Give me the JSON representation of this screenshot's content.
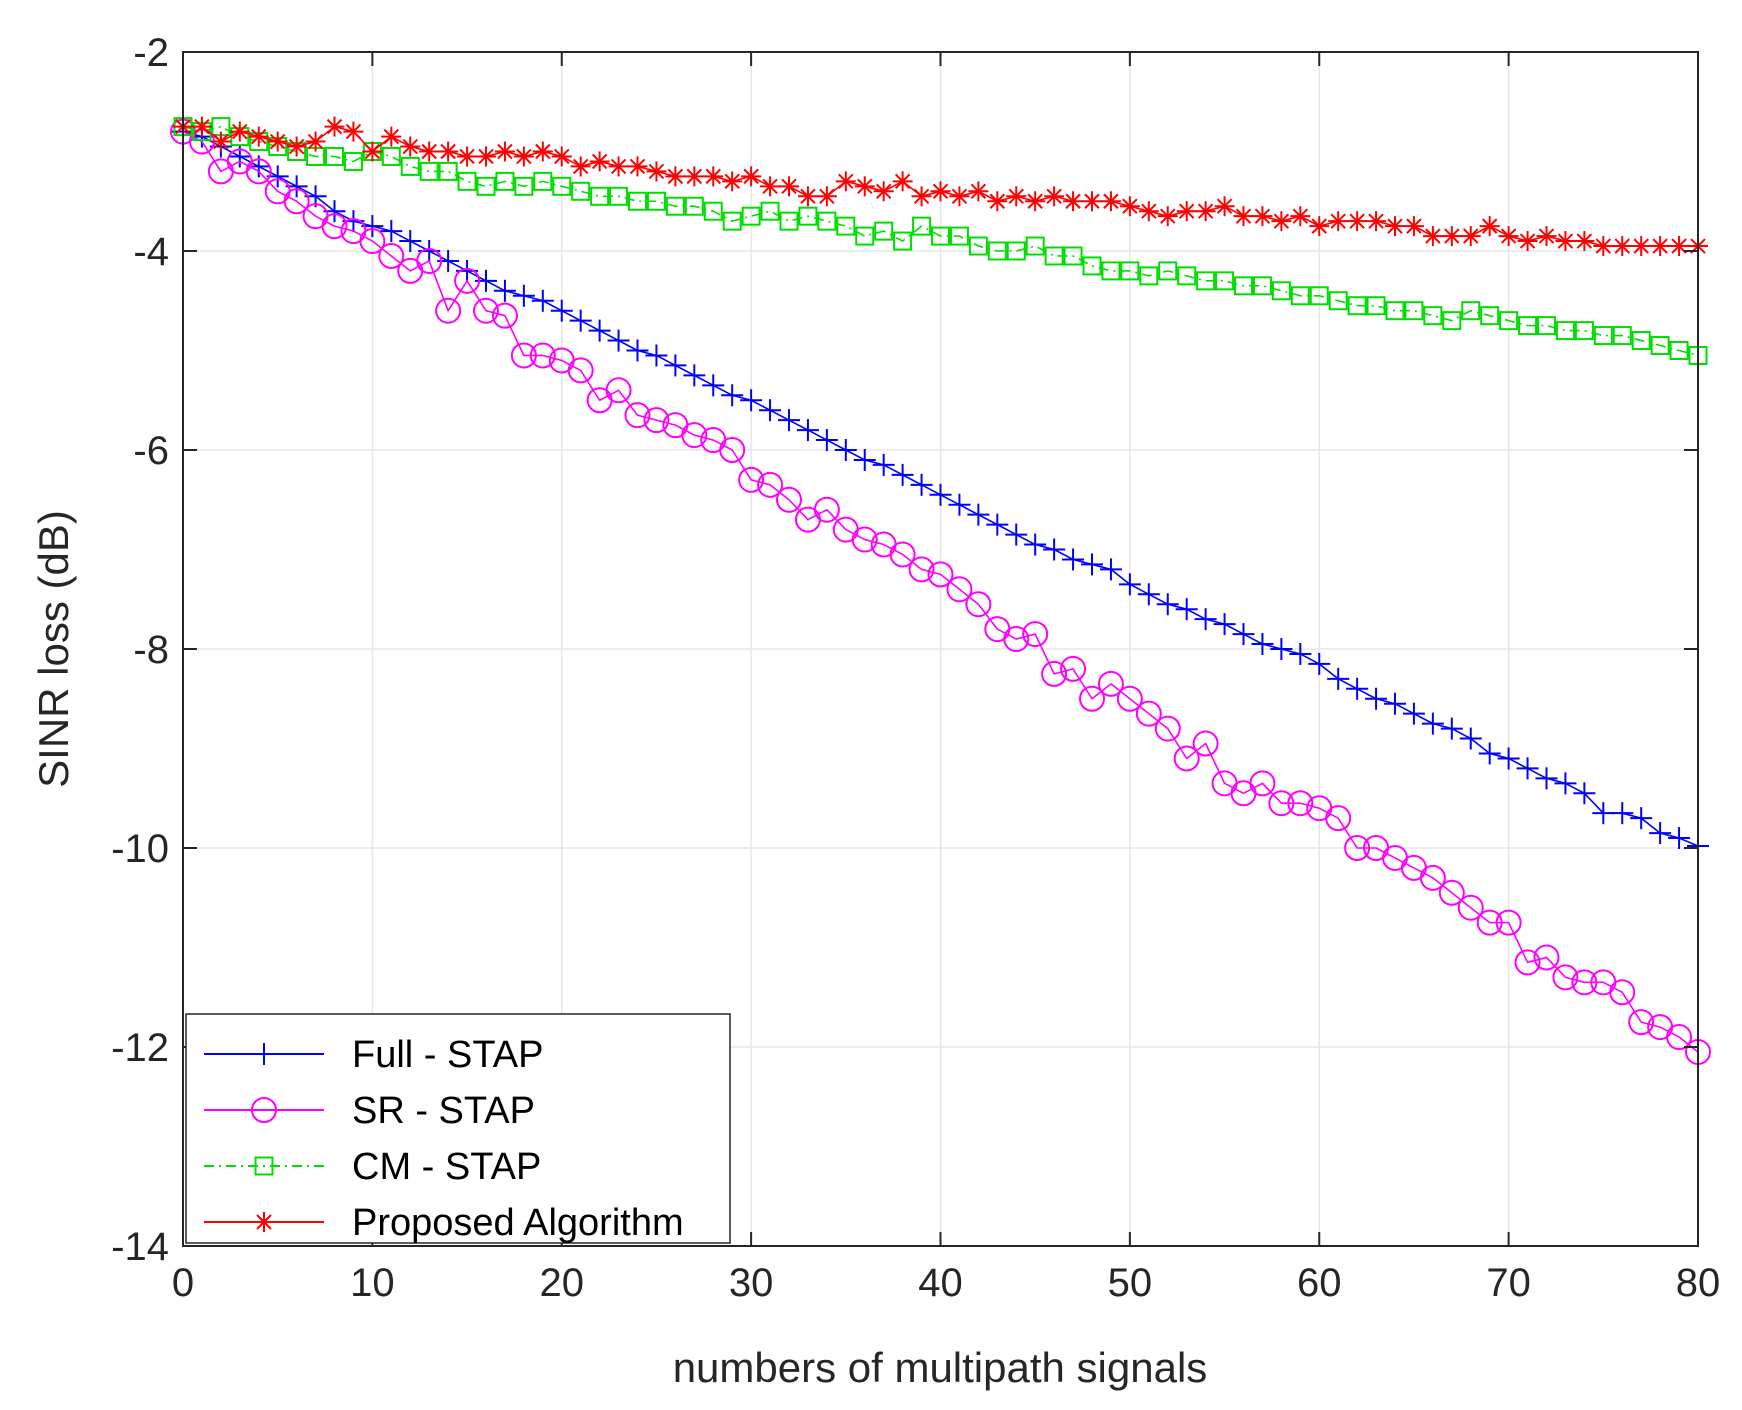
{
  "chart_data": {
    "type": "line",
    "title": "",
    "xlabel": "numbers of multipath signals",
    "ylabel": "SINR loss (dB)",
    "xlim": [
      0,
      80
    ],
    "ylim": [
      -14,
      -2
    ],
    "xticks": [
      0,
      10,
      20,
      30,
      40,
      50,
      60,
      70,
      80
    ],
    "yticks": [
      -2,
      -4,
      -6,
      -8,
      -10,
      -12,
      -14
    ],
    "grid": true,
    "legend_position": "bottom-left",
    "x": [
      0,
      1,
      2,
      3,
      4,
      5,
      6,
      7,
      8,
      9,
      10,
      11,
      12,
      13,
      14,
      15,
      16,
      17,
      18,
      19,
      20,
      21,
      22,
      23,
      24,
      25,
      26,
      27,
      28,
      29,
      30,
      31,
      32,
      33,
      34,
      35,
      36,
      37,
      38,
      39,
      40,
      41,
      42,
      43,
      44,
      45,
      46,
      47,
      48,
      49,
      50,
      51,
      52,
      53,
      54,
      55,
      56,
      57,
      58,
      59,
      60,
      61,
      62,
      63,
      64,
      65,
      66,
      67,
      68,
      69,
      70,
      71,
      72,
      73,
      74,
      75,
      76,
      77,
      78,
      79,
      80
    ],
    "series": [
      {
        "name": "Full - STAP",
        "color": "#0000ff",
        "line_style": "solid",
        "marker": "plus",
        "values": [
          -2.8,
          -2.85,
          -2.95,
          -3.05,
          -3.15,
          -3.25,
          -3.35,
          -3.45,
          -3.6,
          -3.7,
          -3.75,
          -3.8,
          -3.9,
          -4.0,
          -4.1,
          -4.2,
          -4.3,
          -4.4,
          -4.45,
          -4.5,
          -4.6,
          -4.7,
          -4.8,
          -4.9,
          -5.0,
          -5.05,
          -5.15,
          -5.25,
          -5.35,
          -5.45,
          -5.5,
          -5.6,
          -5.7,
          -5.8,
          -5.9,
          -6.0,
          -6.1,
          -6.15,
          -6.25,
          -6.35,
          -6.45,
          -6.55,
          -6.65,
          -6.75,
          -6.85,
          -6.95,
          -7.0,
          -7.1,
          -7.15,
          -7.2,
          -7.35,
          -7.45,
          -7.55,
          -7.6,
          -7.7,
          -7.75,
          -7.85,
          -7.95,
          -8.0,
          -8.05,
          -8.15,
          -8.3,
          -8.4,
          -8.5,
          -8.55,
          -8.65,
          -8.75,
          -8.8,
          -8.9,
          -9.05,
          -9.1,
          -9.2,
          -9.3,
          -9.35,
          -9.45,
          -9.65,
          -9.65,
          -9.7,
          -9.85,
          -9.9,
          -9.98
        ]
      },
      {
        "name": "SR - STAP",
        "color": "#ff00ff",
        "line_style": "solid",
        "marker": "circle",
        "values": [
          -2.8,
          -2.9,
          -3.2,
          -3.1,
          -3.2,
          -3.4,
          -3.5,
          -3.65,
          -3.75,
          -3.8,
          -3.9,
          -4.05,
          -4.2,
          -4.1,
          -4.6,
          -4.3,
          -4.6,
          -4.65,
          -5.05,
          -5.05,
          -5.1,
          -5.2,
          -5.5,
          -5.4,
          -5.65,
          -5.7,
          -5.75,
          -5.85,
          -5.9,
          -6.0,
          -6.3,
          -6.35,
          -6.5,
          -6.7,
          -6.6,
          -6.8,
          -6.9,
          -6.95,
          -7.05,
          -7.2,
          -7.25,
          -7.4,
          -7.55,
          -7.8,
          -7.9,
          -7.85,
          -8.25,
          -8.2,
          -8.5,
          -8.35,
          -8.5,
          -8.65,
          -8.8,
          -9.1,
          -8.95,
          -9.35,
          -9.45,
          -9.35,
          -9.55,
          -9.55,
          -9.6,
          -9.7,
          -10.0,
          -10.0,
          -10.1,
          -10.2,
          -10.3,
          -10.45,
          -10.6,
          -10.75,
          -10.75,
          -11.15,
          -11.1,
          -11.3,
          -11.35,
          -11.35,
          -11.45,
          -11.75,
          -11.8,
          -11.9,
          -12.05
        ]
      },
      {
        "name": "CM - STAP",
        "color": "#00dd00",
        "line_style": "dash-dot",
        "marker": "square",
        "values": [
          -2.75,
          -2.8,
          -2.75,
          -2.85,
          -2.9,
          -2.95,
          -3.0,
          -3.05,
          -3.05,
          -3.1,
          -3.0,
          -3.05,
          -3.15,
          -3.2,
          -3.2,
          -3.3,
          -3.35,
          -3.3,
          -3.35,
          -3.3,
          -3.35,
          -3.4,
          -3.45,
          -3.45,
          -3.5,
          -3.5,
          -3.55,
          -3.55,
          -3.6,
          -3.7,
          -3.65,
          -3.6,
          -3.7,
          -3.65,
          -3.7,
          -3.75,
          -3.85,
          -3.8,
          -3.9,
          -3.75,
          -3.85,
          -3.85,
          -3.95,
          -4.0,
          -4.0,
          -3.95,
          -4.05,
          -4.05,
          -4.15,
          -4.2,
          -4.2,
          -4.25,
          -4.2,
          -4.25,
          -4.3,
          -4.3,
          -4.35,
          -4.35,
          -4.4,
          -4.45,
          -4.45,
          -4.5,
          -4.55,
          -4.55,
          -4.6,
          -4.6,
          -4.65,
          -4.7,
          -4.6,
          -4.65,
          -4.7,
          -4.75,
          -4.75,
          -4.8,
          -4.8,
          -4.85,
          -4.85,
          -4.9,
          -4.95,
          -5.0,
          -5.05
        ]
      },
      {
        "name": "Proposed Algorithm",
        "color": "#ff0000",
        "line_style": "solid",
        "marker": "star",
        "values": [
          -2.75,
          -2.75,
          -2.9,
          -2.8,
          -2.85,
          -2.9,
          -2.95,
          -2.9,
          -2.75,
          -2.8,
          -3.0,
          -2.85,
          -2.95,
          -3.0,
          -3.0,
          -3.05,
          -3.05,
          -3.0,
          -3.05,
          -3.0,
          -3.05,
          -3.15,
          -3.1,
          -3.15,
          -3.15,
          -3.2,
          -3.25,
          -3.25,
          -3.25,
          -3.3,
          -3.25,
          -3.35,
          -3.35,
          -3.45,
          -3.45,
          -3.3,
          -3.35,
          -3.4,
          -3.3,
          -3.45,
          -3.4,
          -3.45,
          -3.4,
          -3.5,
          -3.45,
          -3.5,
          -3.45,
          -3.5,
          -3.5,
          -3.5,
          -3.55,
          -3.6,
          -3.65,
          -3.6,
          -3.6,
          -3.55,
          -3.65,
          -3.65,
          -3.7,
          -3.65,
          -3.75,
          -3.7,
          -3.7,
          -3.7,
          -3.75,
          -3.75,
          -3.85,
          -3.85,
          -3.85,
          -3.75,
          -3.85,
          -3.9,
          -3.85,
          -3.9,
          -3.9,
          -3.95,
          -3.95,
          -3.95,
          -3.95,
          -3.95,
          -3.95
        ]
      }
    ]
  }
}
